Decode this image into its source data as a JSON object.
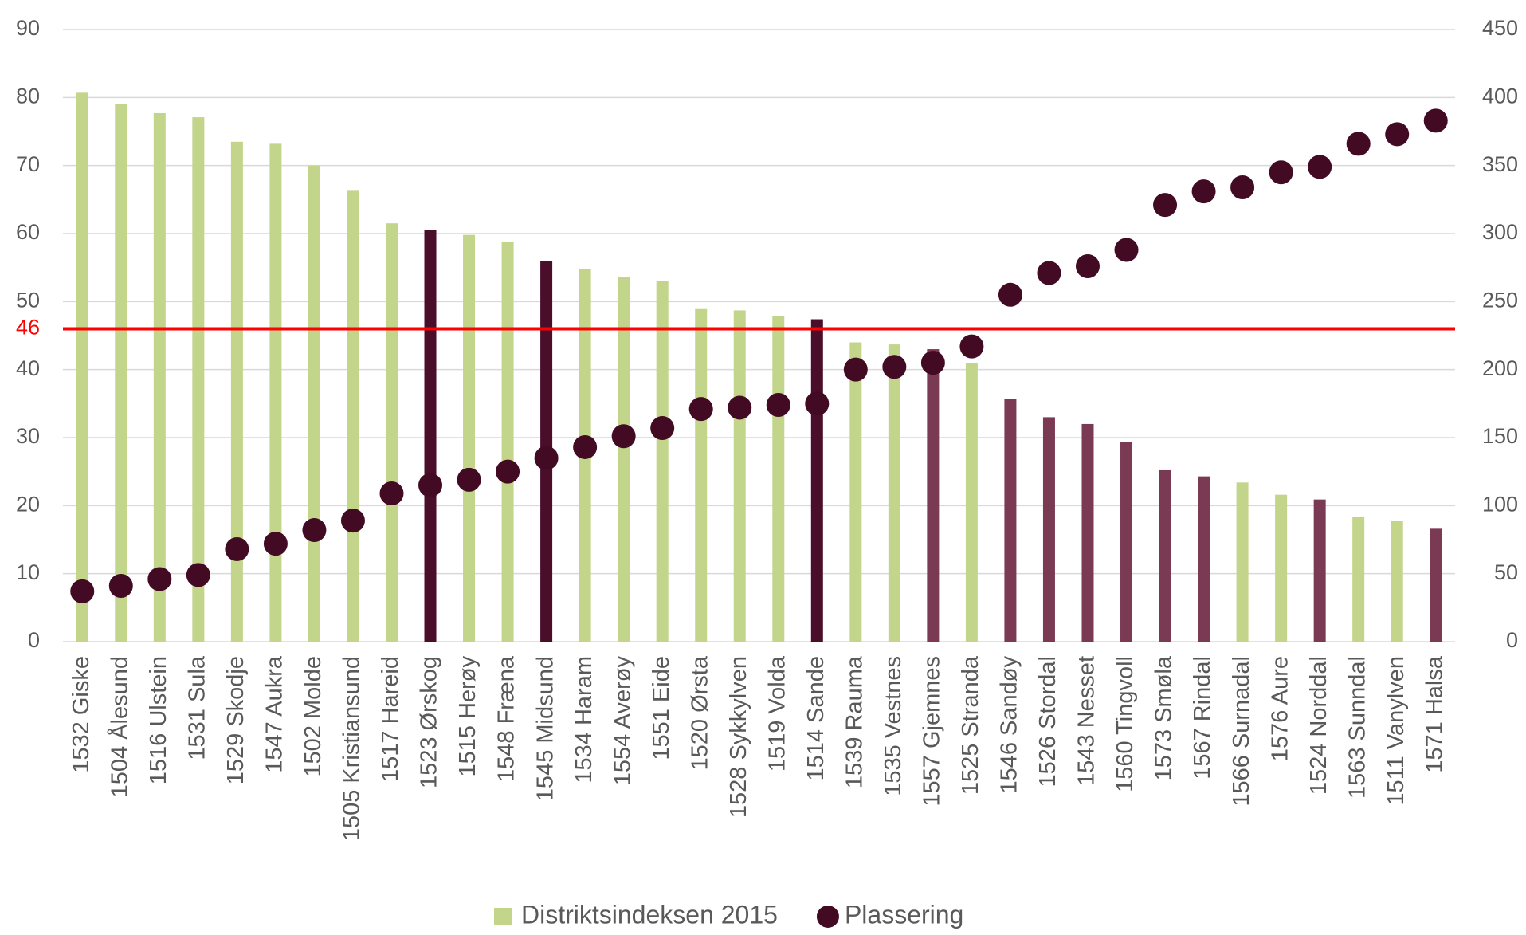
{
  "chart_data": {
    "type": "bar",
    "categories": [
      "1532 Giske",
      "1504 Ålesund",
      "1516 Ulstein",
      "1531 Sula",
      "1529 Skodje",
      "1547 Aukra",
      "1502 Molde",
      "1505 Kristiansund",
      "1517 Hareid",
      "1523 Ørskog",
      "1515 Herøy",
      "1548 Fræna",
      "1545 Midsund",
      "1534 Haram",
      "1554 Averøy",
      "1551 Eide",
      "1520 Ørsta",
      "1528 Sykkylven",
      "1519 Volda",
      "1514 Sande",
      "1539 Rauma",
      "1535 Vestnes",
      "1557 Gjemnes",
      "1525 Stranda",
      "1546 Sandøy",
      "1526 Stordal",
      "1543 Nesset",
      "1560 Tingvoll",
      "1573 Smøla",
      "1567 Rindal",
      "1566 Surnadal",
      "1576 Aure",
      "1524 Norddal",
      "1563 Sunndal",
      "1511 Vanylven",
      "1571 Halsa"
    ],
    "series": [
      {
        "name": "Distriktsindeksen 2015",
        "type": "bar",
        "color": "#c3d48b",
        "colors": [
          "#c3d48b",
          "#c3d48b",
          "#c3d48b",
          "#c3d48b",
          "#c3d48b",
          "#c3d48b",
          "#c3d48b",
          "#c3d48b",
          "#c3d48b",
          "#4a0d2a",
          "#c3d48b",
          "#c3d48b",
          "#4a0d2a",
          "#c3d48b",
          "#c3d48b",
          "#c3d48b",
          "#c3d48b",
          "#c3d48b",
          "#c3d48b",
          "#4a0d2a",
          "#c3d48b",
          "#c3d48b",
          "#7b3a53",
          "#c3d48b",
          "#7b3a53",
          "#7b3a53",
          "#7b3a53",
          "#7b3a53",
          "#7b3a53",
          "#7b3a53",
          "#c3d48b",
          "#c3d48b",
          "#7b3a53",
          "#c3d48b",
          "#c3d48b",
          "#7b3a53"
        ],
        "values": [
          80.7,
          79,
          77.7,
          77.1,
          73.5,
          73.2,
          70,
          66.4,
          61.5,
          60.5,
          59.8,
          58.8,
          56,
          54.8,
          53.6,
          53,
          48.9,
          48.7,
          47.9,
          47.4,
          44,
          43.7,
          43,
          40.9,
          35.7,
          33,
          32,
          29.3,
          25.2,
          24.3,
          23.4,
          21.6,
          20.9,
          18.4,
          17.7,
          16.6
        ]
      },
      {
        "name": "Plassering",
        "type": "scatter",
        "axis": "y2",
        "color": "#420a23",
        "values": [
          37,
          41,
          46,
          49,
          68,
          72,
          82,
          89,
          109,
          115,
          119,
          125,
          135,
          143,
          151,
          157,
          171,
          172,
          174,
          175,
          200,
          202,
          205,
          217,
          255,
          271,
          276,
          288,
          321,
          331,
          334,
          345,
          349,
          366,
          373,
          383
        ]
      }
    ],
    "reference_line": {
      "value": 46,
      "color": "#ff0000"
    },
    "ylim": [
      0,
      90
    ],
    "yticks": [
      0,
      10,
      20,
      30,
      40,
      50,
      60,
      70,
      80,
      90
    ],
    "y2lim": [
      0,
      450
    ],
    "y2ticks": [
      0,
      50,
      100,
      150,
      200,
      250,
      300,
      350,
      400,
      450
    ],
    "grid": true,
    "legend": "bottom"
  }
}
